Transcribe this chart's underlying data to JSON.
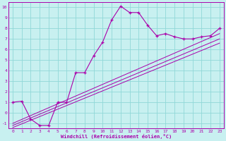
{
  "xlabel": "Windchill (Refroidissement éolien,°C)",
  "bg_color": "#c8f0f0",
  "line_color": "#aa00aa",
  "grid_color": "#90d8d8",
  "spine_color": "#aa00aa",
  "xlim": [
    -0.5,
    23.5
  ],
  "ylim": [
    -1.5,
    10.5
  ],
  "xticks": [
    0,
    1,
    2,
    3,
    4,
    5,
    6,
    7,
    8,
    9,
    10,
    11,
    12,
    13,
    14,
    15,
    16,
    17,
    18,
    19,
    20,
    21,
    22,
    23
  ],
  "yticks": [
    -1,
    0,
    1,
    2,
    3,
    4,
    5,
    6,
    7,
    8,
    9,
    10
  ],
  "main_line_x": [
    0,
    1,
    2,
    3,
    4,
    5,
    6,
    7,
    8,
    9,
    10,
    11,
    12,
    13,
    14,
    15,
    16,
    17,
    18,
    19,
    20,
    21,
    22,
    23
  ],
  "main_line_y": [
    1.0,
    1.1,
    -0.6,
    -1.2,
    -1.2,
    1.0,
    1.0,
    3.8,
    3.8,
    5.4,
    6.7,
    8.8,
    10.1,
    9.5,
    9.5,
    8.3,
    7.3,
    7.5,
    7.2,
    7.0,
    7.0,
    7.2,
    7.3,
    8.0
  ],
  "line2_x": [
    0,
    23
  ],
  "line2_y": [
    -1.0,
    7.5
  ],
  "line3_x": [
    0,
    23
  ],
  "line3_y": [
    -1.2,
    7.0
  ],
  "line4_x": [
    0,
    23
  ],
  "line4_y": [
    -1.4,
    6.6
  ],
  "tick_fontsize": 4.5,
  "xlabel_fontsize": 5.0
}
